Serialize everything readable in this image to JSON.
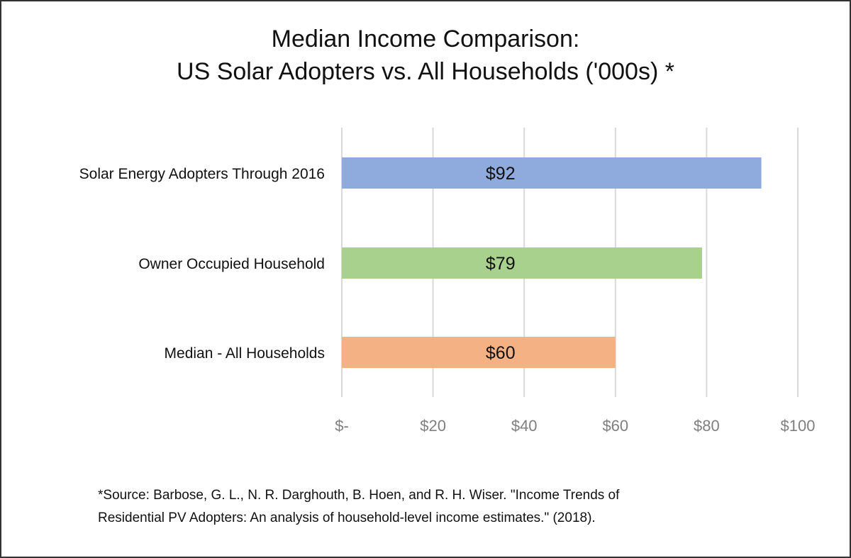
{
  "chart_data": {
    "type": "bar",
    "orientation": "horizontal",
    "title_line1": "Median Income Comparison:",
    "title_line2": "US Solar Adopters vs. All Households ('000s) *",
    "categories": [
      "Solar Energy Adopters Through 2016",
      "Owner Occupied Household",
      "Median - All Households"
    ],
    "values": [
      92,
      79,
      60
    ],
    "data_labels": [
      "$92",
      "$79",
      "$60"
    ],
    "colors": [
      "#8faadc",
      "#a9d18e",
      "#f4b183"
    ],
    "xlim": [
      0,
      100
    ],
    "xticks": [
      0,
      20,
      40,
      60,
      80,
      100
    ],
    "xtick_labels": [
      "$-",
      "$20",
      "$40",
      "$60",
      "$80",
      "$100"
    ],
    "grid": true,
    "legend": "none"
  },
  "source_line1": "*Source: Barbose, G. L., N. R. Darghouth, B. Hoen, and R. H. Wiser. \"Income Trends of",
  "source_line2": "Residential PV Adopters: An analysis of household-level income estimates.\" (2018)."
}
